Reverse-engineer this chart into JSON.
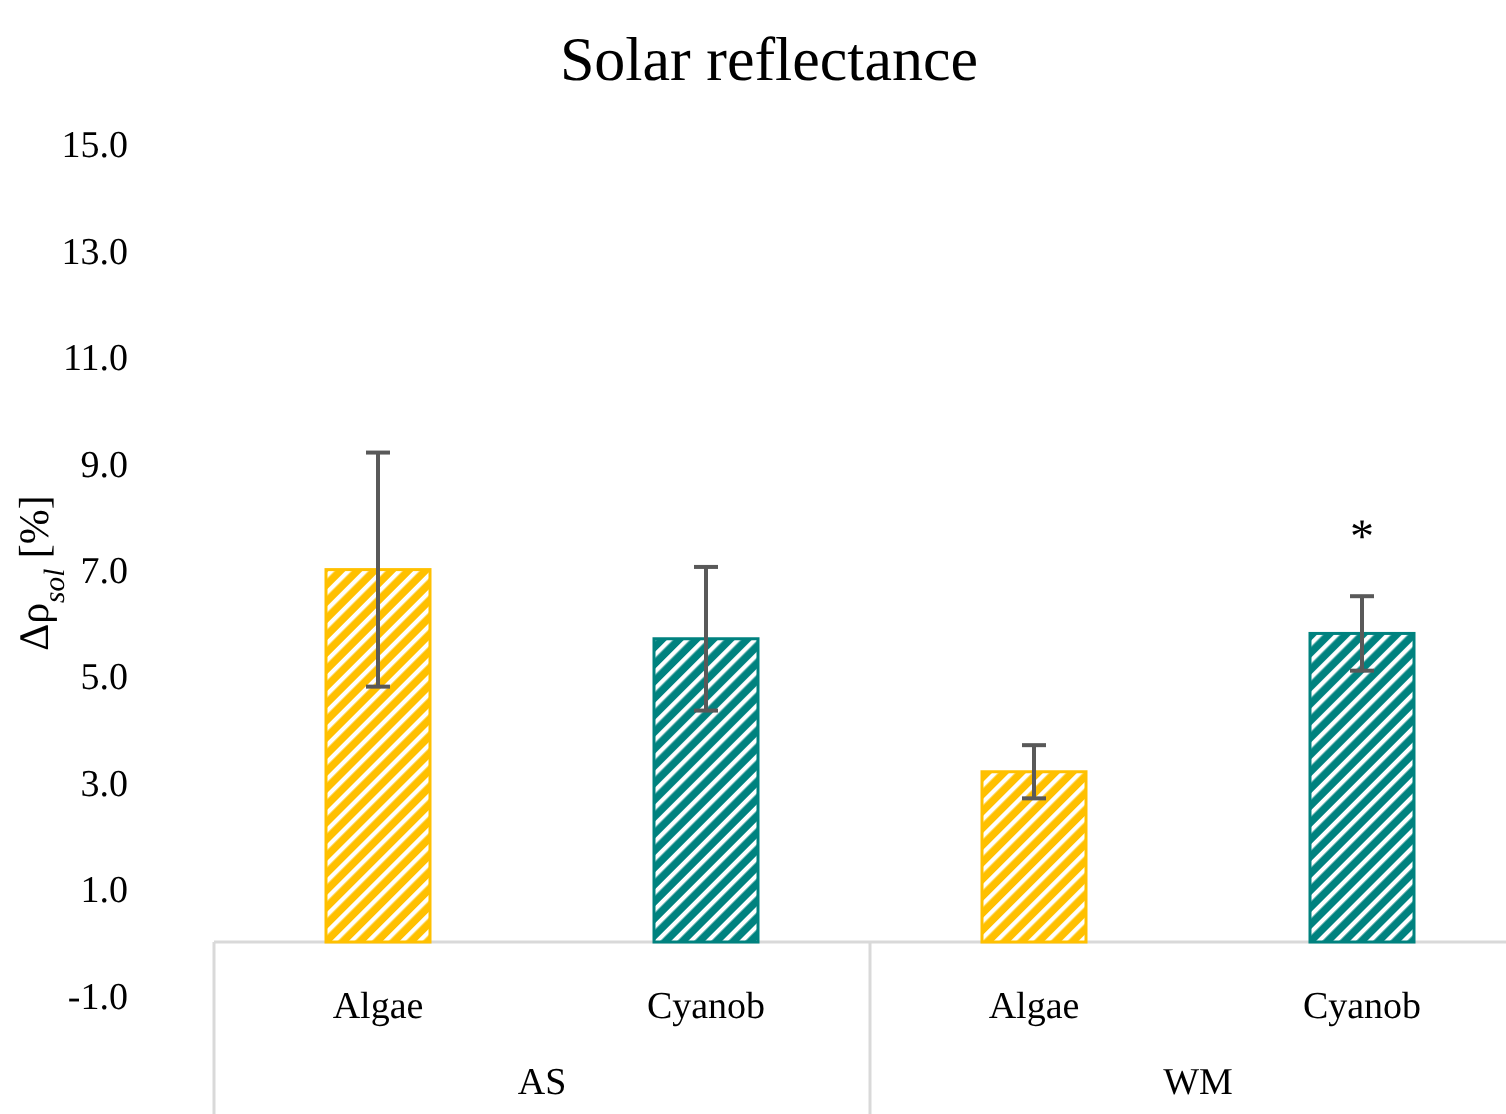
{
  "chart_data": {
    "type": "bar",
    "title": "Solar reflectance",
    "ylabel": "Δρ$_{sol}$ [%]",
    "categories": [
      "Algae",
      "Cyanob",
      "Algae",
      "Cyanob"
    ],
    "values": [
      7.0,
      5.7,
      3.2,
      5.8
    ],
    "errors": [
      2.2,
      1.35,
      0.5,
      0.7
    ],
    "colors": [
      "#ffc000",
      "#00827f",
      "#ffc000",
      "#00827f"
    ],
    "ylim": [
      -1,
      15
    ],
    "yticks": [
      {
        "value": -1,
        "label": "-1.0"
      },
      {
        "value": 1,
        "label": "1.0"
      },
      {
        "value": 3,
        "label": "3.0"
      },
      {
        "value": 5,
        "label": "5.0"
      },
      {
        "value": 7,
        "label": "7.0"
      },
      {
        "value": 9,
        "label": "9.0"
      },
      {
        "value": 11,
        "label": "11.0"
      },
      {
        "value": 13,
        "label": "13.0"
      },
      {
        "value": 15,
        "label": "15.0"
      }
    ],
    "grid": false,
    "legend": false,
    "annotations": [
      "*",
      "AS",
      "WM"
    ]
  }
}
